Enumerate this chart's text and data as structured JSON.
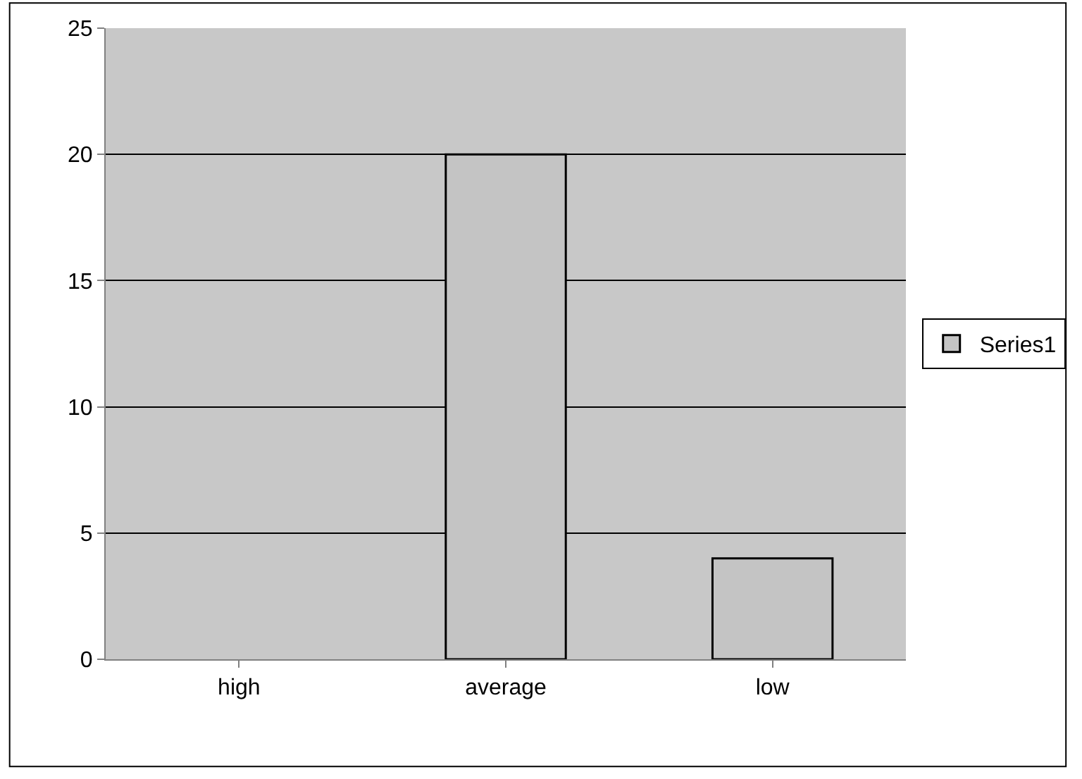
{
  "chart_data": {
    "type": "bar",
    "categories": [
      "high",
      "average",
      "low"
    ],
    "series": [
      {
        "name": "Series1",
        "color": "#c4c4c4",
        "values": [
          null,
          20,
          4
        ]
      }
    ],
    "ylim": [
      0,
      25
    ],
    "yticks": [
      0,
      5,
      10,
      15,
      20,
      25
    ],
    "grid": "y",
    "legend": "right"
  }
}
